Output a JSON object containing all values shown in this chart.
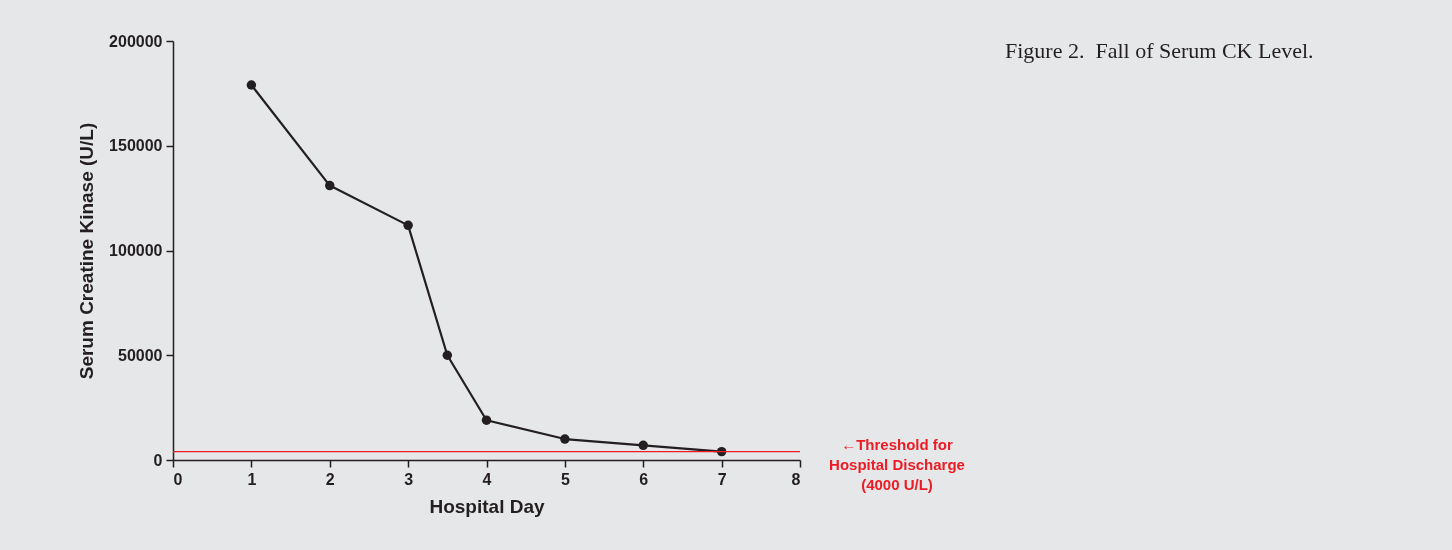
{
  "chart_data": {
    "type": "line",
    "title": "Figure 2.  Fall of Serum CK Level.",
    "xlabel": "Hospital Day",
    "ylabel": "Serum Creatine Kinase (U/L)",
    "x": [
      1,
      2,
      3,
      3.5,
      4,
      5,
      6,
      7
    ],
    "series": [
      {
        "color": "#231f20",
        "values": [
          179000,
          131000,
          112000,
          50000,
          19000,
          10000,
          7000,
          4000
        ]
      }
    ],
    "xlim": [
      0,
      8
    ],
    "xticks": [
      0,
      1,
      2,
      3,
      4,
      5,
      6,
      7,
      8
    ],
    "ylim": [
      0,
      200000
    ],
    "yticks": [
      0,
      50000,
      100000,
      150000,
      200000
    ],
    "ref_lines": [
      {
        "axis": "y",
        "value": 4000,
        "label": "←Threshold for\nHospital Discharge\n(4000 U/L)",
        "color": "#ed1c24"
      }
    ],
    "grid": false,
    "marker": "circle",
    "line_style": "solid"
  }
}
